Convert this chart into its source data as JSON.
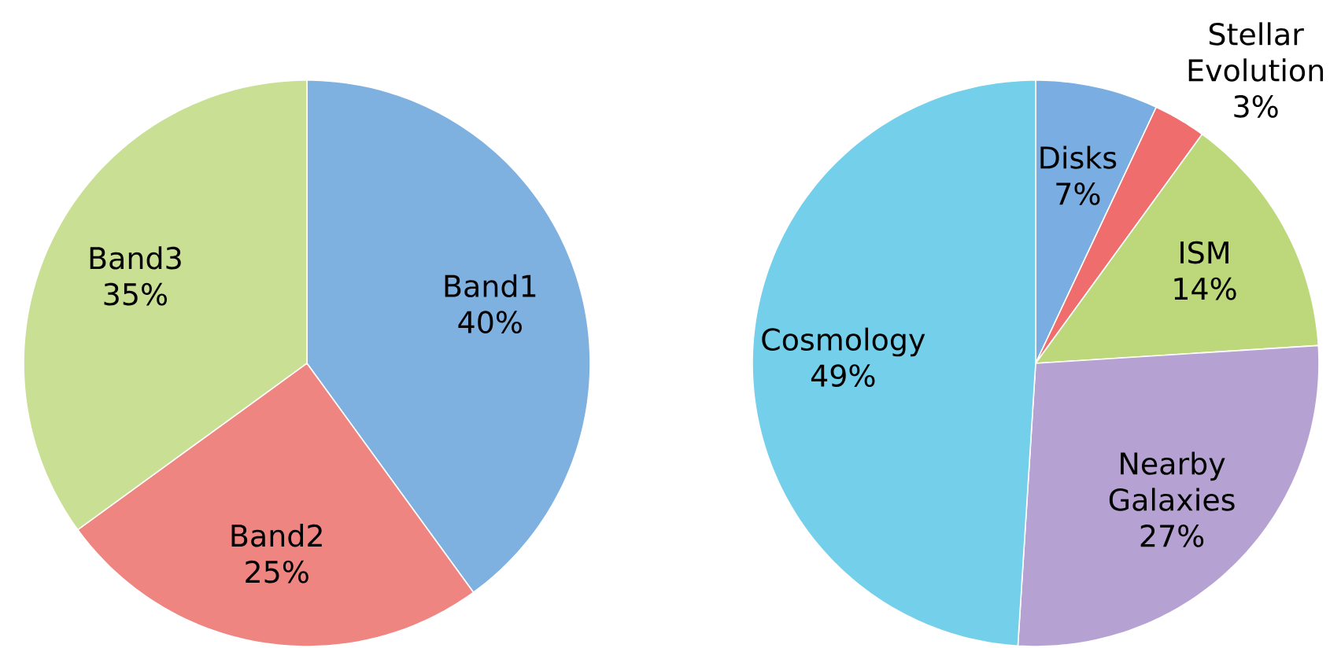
{
  "chart_data": [
    {
      "type": "pie",
      "categories": [
        "Band1",
        "Band2",
        "Band3"
      ],
      "values": [
        40,
        25,
        35
      ],
      "value_labels": [
        "40%",
        "25%",
        "35%"
      ],
      "colors": [
        "#7eb0e0",
        "#ee8580",
        "#c9df93"
      ]
    },
    {
      "type": "pie",
      "categories": [
        "Disks",
        "Stellar Evolution",
        "ISM",
        "Nearby Galaxies",
        "Cosmology"
      ],
      "values": [
        7,
        3,
        14,
        27,
        49
      ],
      "value_labels": [
        "7%",
        "3%",
        "14%",
        "27%",
        "49%"
      ],
      "colors": [
        "#7aaee2",
        "#ef6d6d",
        "#bcd87a",
        "#b6a2d2",
        "#74d0ea"
      ]
    }
  ]
}
